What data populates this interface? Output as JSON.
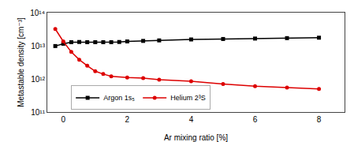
{
  "chart_data": {
    "type": "line",
    "xlabel": "Ar mixing ratio [%]",
    "ylabel": "Metastable density [cm⁻³]",
    "log": "y",
    "xlim": [
      -0.5,
      8.8
    ],
    "ylim": [
      100000000000.0,
      100000000000000.0
    ],
    "xticks": [
      0,
      2,
      4,
      6,
      8
    ],
    "yticks": [
      {
        "value": 100000000000.0,
        "label": "10¹¹"
      },
      {
        "value": 1000000000000.0,
        "label": "10¹²"
      },
      {
        "value": 10000000000000.0,
        "label": "10¹³"
      },
      {
        "value": 100000000000000.0,
        "label": "10¹⁴"
      }
    ],
    "grid": false,
    "legend": "lower left",
    "series": [
      {
        "name": "Argon 1s₅",
        "color": "#000000",
        "marker": "square",
        "x": [
          -0.25,
          0.0,
          0.25,
          0.5,
          0.75,
          1.0,
          1.25,
          1.5,
          1.75,
          2.0,
          2.5,
          3.0,
          4.0,
          5.0,
          6.0,
          7.0,
          8.0
        ],
        "values": [
          9800000000000.0,
          11500000000000.0,
          12800000000000.0,
          13000000000000.0,
          12800000000000.0,
          12800000000000.0,
          12800000000000.0,
          12800000000000.0,
          13000000000000.0,
          13500000000000.0,
          14000000000000.0,
          14500000000000.0,
          15500000000000.0,
          16000000000000.0,
          16500000000000.0,
          17000000000000.0,
          17500000000000.0
        ]
      },
      {
        "name": "Helium 2³S",
        "color": "#dd0000",
        "marker": "circle",
        "x": [
          -0.25,
          0.0,
          0.25,
          0.5,
          0.75,
          1.0,
          1.25,
          1.5,
          2.0,
          2.5,
          3.0,
          4.0,
          5.0,
          6.0,
          7.0,
          8.0
        ],
        "values": [
          32000000000000.0,
          13500000000000.0,
          6500000000000.0,
          3800000000000.0,
          2500000000000.0,
          1700000000000.0,
          1400000000000.0,
          1200000000000.0,
          1100000000000.0,
          1050000000000.0,
          950000000000.0,
          850000000000.0,
          700000000000.0,
          600000000000.0,
          550000000000.0,
          500000000000.0
        ]
      }
    ]
  }
}
